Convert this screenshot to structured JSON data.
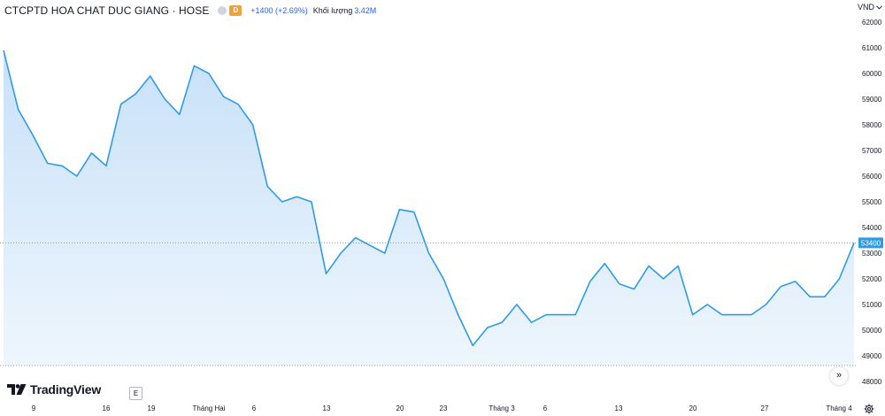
{
  "header": {
    "title": "CTCPTD HOA CHAT DUC GIANG · HOSE",
    "badge": "D",
    "change": "+1400 (+2.69%)",
    "volume_label": "Khối lượng",
    "volume_value": "3.42M"
  },
  "currency": "VND",
  "brand": "TradingView",
  "e_label": "E",
  "scroll_icon": "»",
  "colors": {
    "line": "#2e9be6",
    "fill_top": "#c8e1f9",
    "fill_bottom": "#eef6fd",
    "last_label_bg": "#2e9be6",
    "badge_orange": "#f0a23a"
  },
  "chart_data": {
    "type": "area",
    "xlabel": "",
    "ylabel": "",
    "ylim": [
      48000,
      62000
    ],
    "y_ticks": [
      48000,
      49000,
      50000,
      51000,
      52000,
      53000,
      54000,
      55000,
      56000,
      57000,
      58000,
      59000,
      60000,
      61000,
      62000
    ],
    "x_ticks": [
      "9",
      "16",
      "19",
      "Tháng Hai",
      "6",
      "13",
      "20",
      "23",
      "Tháng 3",
      "6",
      "13",
      "20",
      "27",
      "Tháng 4"
    ],
    "last_value": "53400",
    "series": [
      {
        "values": [
          60900,
          58600,
          57600,
          56500,
          56400,
          56000,
          56900,
          56400,
          58800,
          59200,
          59900,
          59000,
          58400,
          60300,
          60000,
          59100,
          58800,
          58000,
          55600,
          55000,
          55200,
          55000,
          52200,
          53000,
          53600,
          53300,
          53000,
          54700,
          54600,
          53000,
          52000,
          50600,
          49400,
          50100,
          50300,
          51000,
          50300,
          50600,
          50600,
          50600,
          51900,
          52600,
          51800,
          51600,
          52500,
          52000,
          52500,
          50600,
          51000,
          50600,
          50600,
          50600,
          51000,
          51700,
          51900,
          51300,
          51300,
          52000,
          53400
        ]
      }
    ]
  }
}
